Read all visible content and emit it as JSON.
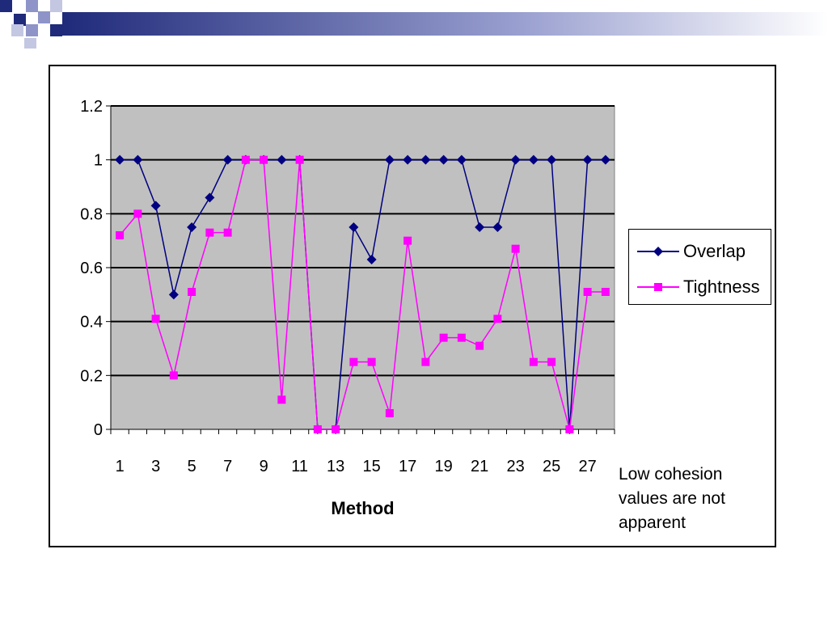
{
  "colors": {
    "plot_background": "#C0C0C0",
    "overlap": "#000080",
    "tightness": "#FF00FF",
    "gridline": "#000000",
    "deco_dark": "#1F2A7A",
    "deco_light": "#8E94C8"
  },
  "annotation": "Low cohesion values are not apparent",
  "chart_data": {
    "type": "line",
    "title": "",
    "xlabel": "Method",
    "ylabel": "",
    "ylim": [
      0,
      1.2
    ],
    "y_ticks": [
      "0",
      "0.2",
      "0.4",
      "0.6",
      "0.8",
      "1",
      "1.2"
    ],
    "x_tick_labels": [
      "1",
      "3",
      "5",
      "7",
      "9",
      "11",
      "13",
      "15",
      "17",
      "19",
      "21",
      "23",
      "25",
      "27"
    ],
    "x": [
      1,
      2,
      3,
      4,
      5,
      6,
      7,
      8,
      9,
      10,
      11,
      12,
      13,
      14,
      15,
      16,
      17,
      18,
      19,
      20,
      21,
      22,
      23,
      24,
      25,
      26,
      27,
      28
    ],
    "grid": true,
    "legend_position": "right",
    "series": [
      {
        "name": "Overlap",
        "marker": "diamond",
        "values": [
          1,
          1,
          0.83,
          0.5,
          0.75,
          0.86,
          1,
          1,
          1,
          1,
          1,
          0,
          0,
          0.75,
          0.63,
          1,
          1,
          1,
          1,
          1,
          0.75,
          0.75,
          1,
          1,
          1,
          0,
          1,
          1
        ]
      },
      {
        "name": "Tightness",
        "marker": "square",
        "values": [
          0.72,
          0.8,
          0.41,
          0.2,
          0.51,
          0.73,
          0.73,
          1,
          1,
          0.11,
          1,
          0,
          0,
          0.25,
          0.25,
          0.06,
          0.7,
          0.25,
          0.34,
          0.34,
          0.31,
          0.41,
          0.67,
          0.25,
          0.25,
          0,
          0.51,
          0.51
        ]
      }
    ]
  }
}
